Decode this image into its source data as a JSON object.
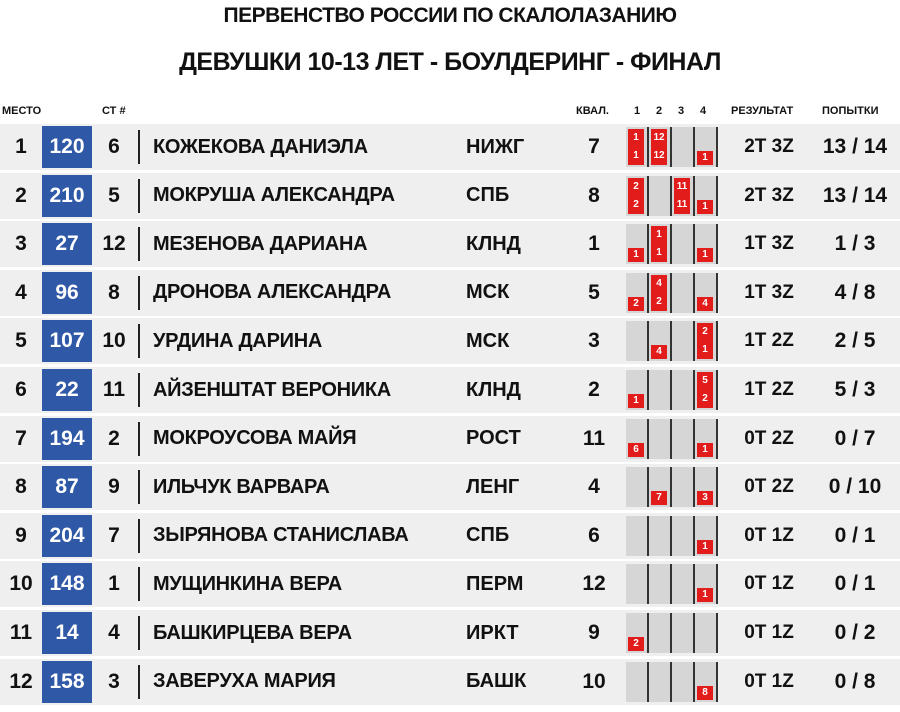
{
  "title_line1": "ПЕРВЕНСТВО РОССИИ ПО СКАЛОЛАЗАНИЮ",
  "title_line2": "ДЕВУШКИ 10-13 ЛЕТ - БОУЛДЕРИНГ - ФИНАЛ",
  "headers": {
    "place": "МЕСТО",
    "start": "СТ #",
    "qual": "КВАЛ.",
    "b1": "1",
    "b2": "2",
    "b3": "3",
    "b4": "4",
    "result": "РЕЗУЛЬТАТ",
    "tries": "ПОПЫТКИ"
  },
  "colors": {
    "bib_bg": "#2f58a6",
    "row_bg": "#efefef",
    "boulder_bg": "#d6d6d6",
    "attempt_box": "#e21b1b"
  },
  "rows": [
    {
      "place": "1",
      "bib": "120",
      "start": "6",
      "name": "КОЖЕКОВА ДАНИЭЛА",
      "team": "НИЖГ",
      "qual": "7",
      "boulders": [
        {
          "top": "1",
          "zone": "1"
        },
        {
          "top": "12",
          "zone": "12"
        },
        {
          "top": "",
          "zone": ""
        },
        {
          "top": "",
          "zone": "1"
        }
      ],
      "result": "2T 3Z",
      "tries": "13 / 14"
    },
    {
      "place": "2",
      "bib": "210",
      "start": "5",
      "name": "МОКРУША АЛЕКСАНДРА",
      "team": "СПБ",
      "qual": "8",
      "boulders": [
        {
          "top": "2",
          "zone": "2"
        },
        {
          "top": "",
          "zone": ""
        },
        {
          "top": "11",
          "zone": "11"
        },
        {
          "top": "",
          "zone": "1"
        }
      ],
      "result": "2T 3Z",
      "tries": "13 / 14"
    },
    {
      "place": "3",
      "bib": "27",
      "start": "12",
      "name": "МЕЗЕНОВА ДАРИАНА",
      "team": "КЛНД",
      "qual": "1",
      "boulders": [
        {
          "top": "",
          "zone": "1"
        },
        {
          "top": "1",
          "zone": "1"
        },
        {
          "top": "",
          "zone": ""
        },
        {
          "top": "",
          "zone": "1"
        }
      ],
      "result": "1T 3Z",
      "tries": "1 / 3"
    },
    {
      "place": "4",
      "bib": "96",
      "start": "8",
      "name": "ДРОНОВА АЛЕКСАНДРА",
      "team": "МСК",
      "qual": "5",
      "boulders": [
        {
          "top": "",
          "zone": "2"
        },
        {
          "top": "4",
          "zone": "2"
        },
        {
          "top": "",
          "zone": ""
        },
        {
          "top": "",
          "zone": "4"
        }
      ],
      "result": "1T 3Z",
      "tries": "4 / 8"
    },
    {
      "place": "5",
      "bib": "107",
      "start": "10",
      "name": "УРДИНА ДАРИНА",
      "team": "МСК",
      "qual": "3",
      "boulders": [
        {
          "top": "",
          "zone": ""
        },
        {
          "top": "",
          "zone": "4"
        },
        {
          "top": "",
          "zone": ""
        },
        {
          "top": "2",
          "zone": "1"
        }
      ],
      "result": "1T 2Z",
      "tries": "2 / 5"
    },
    {
      "place": "6",
      "bib": "22",
      "start": "11",
      "name": "АЙЗЕНШТАТ ВЕРОНИКА",
      "team": "КЛНД",
      "qual": "2",
      "boulders": [
        {
          "top": "",
          "zone": "1"
        },
        {
          "top": "",
          "zone": ""
        },
        {
          "top": "",
          "zone": ""
        },
        {
          "top": "5",
          "zone": "2"
        }
      ],
      "result": "1T 2Z",
      "tries": "5 / 3"
    },
    {
      "place": "7",
      "bib": "194",
      "start": "2",
      "name": "МОКРОУСОВА МАЙЯ",
      "team": "РОСТ",
      "qual": "11",
      "boulders": [
        {
          "top": "",
          "zone": "6"
        },
        {
          "top": "",
          "zone": ""
        },
        {
          "top": "",
          "zone": ""
        },
        {
          "top": "",
          "zone": "1"
        }
      ],
      "result": "0T 2Z",
      "tries": "0 / 7"
    },
    {
      "place": "8",
      "bib": "87",
      "start": "9",
      "name": "ИЛЬЧУК ВАРВАРА",
      "team": "ЛЕНГ",
      "qual": "4",
      "boulders": [
        {
          "top": "",
          "zone": ""
        },
        {
          "top": "",
          "zone": "7"
        },
        {
          "top": "",
          "zone": ""
        },
        {
          "top": "",
          "zone": "3"
        }
      ],
      "result": "0T 2Z",
      "tries": "0 / 10"
    },
    {
      "place": "9",
      "bib": "204",
      "start": "7",
      "name": "ЗЫРЯНОВА СТАНИСЛАВА",
      "team": "СПБ",
      "qual": "6",
      "boulders": [
        {
          "top": "",
          "zone": ""
        },
        {
          "top": "",
          "zone": ""
        },
        {
          "top": "",
          "zone": ""
        },
        {
          "top": "",
          "zone": "1"
        }
      ],
      "result": "0T 1Z",
      "tries": "0 / 1"
    },
    {
      "place": "10",
      "bib": "148",
      "start": "1",
      "name": "МУЩИНКИНА ВЕРА",
      "team": "ПЕРМ",
      "qual": "12",
      "boulders": [
        {
          "top": "",
          "zone": ""
        },
        {
          "top": "",
          "zone": ""
        },
        {
          "top": "",
          "zone": ""
        },
        {
          "top": "",
          "zone": "1"
        }
      ],
      "result": "0T 1Z",
      "tries": "0 / 1"
    },
    {
      "place": "11",
      "bib": "14",
      "start": "4",
      "name": "БАШКИРЦЕВА ВЕРА",
      "team": "ИРКТ",
      "qual": "9",
      "boulders": [
        {
          "top": "",
          "zone": "2"
        },
        {
          "top": "",
          "zone": ""
        },
        {
          "top": "",
          "zone": ""
        },
        {
          "top": "",
          "zone": ""
        }
      ],
      "result": "0T 1Z",
      "tries": "0 / 2"
    },
    {
      "place": "12",
      "bib": "158",
      "start": "3",
      "name": "ЗАВЕРУХА МАРИЯ",
      "team": "БАШК",
      "qual": "10",
      "boulders": [
        {
          "top": "",
          "zone": ""
        },
        {
          "top": "",
          "zone": ""
        },
        {
          "top": "",
          "zone": ""
        },
        {
          "top": "",
          "zone": "8"
        }
      ],
      "result": "0T 1Z",
      "tries": "0 / 8"
    }
  ]
}
